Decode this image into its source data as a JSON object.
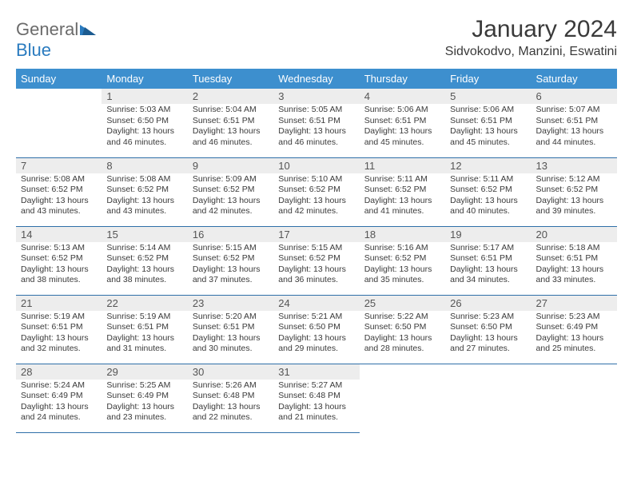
{
  "logo": {
    "general": "General",
    "blue": "Blue"
  },
  "title": {
    "month": "January 2024",
    "location": "Sidvokodvo, Manzini, Eswatini"
  },
  "headers": [
    "Sunday",
    "Monday",
    "Tuesday",
    "Wednesday",
    "Thursday",
    "Friday",
    "Saturday"
  ],
  "colors": {
    "header_bg": "#3d8fce",
    "row_border": "#2f6fa8",
    "daynum_bg": "#ededed",
    "logo_blue": "#2a7bbf",
    "text": "#3a3a3a"
  },
  "weeks": [
    [
      {
        "empty": true
      },
      {
        "num": "1",
        "sunrise": "Sunrise: 5:03 AM",
        "sunset": "Sunset: 6:50 PM",
        "daylight": "Daylight: 13 hours and 46 minutes."
      },
      {
        "num": "2",
        "sunrise": "Sunrise: 5:04 AM",
        "sunset": "Sunset: 6:51 PM",
        "daylight": "Daylight: 13 hours and 46 minutes."
      },
      {
        "num": "3",
        "sunrise": "Sunrise: 5:05 AM",
        "sunset": "Sunset: 6:51 PM",
        "daylight": "Daylight: 13 hours and 46 minutes."
      },
      {
        "num": "4",
        "sunrise": "Sunrise: 5:06 AM",
        "sunset": "Sunset: 6:51 PM",
        "daylight": "Daylight: 13 hours and 45 minutes."
      },
      {
        "num": "5",
        "sunrise": "Sunrise: 5:06 AM",
        "sunset": "Sunset: 6:51 PM",
        "daylight": "Daylight: 13 hours and 45 minutes."
      },
      {
        "num": "6",
        "sunrise": "Sunrise: 5:07 AM",
        "sunset": "Sunset: 6:51 PM",
        "daylight": "Daylight: 13 hours and 44 minutes."
      }
    ],
    [
      {
        "num": "7",
        "sunrise": "Sunrise: 5:08 AM",
        "sunset": "Sunset: 6:52 PM",
        "daylight": "Daylight: 13 hours and 43 minutes."
      },
      {
        "num": "8",
        "sunrise": "Sunrise: 5:08 AM",
        "sunset": "Sunset: 6:52 PM",
        "daylight": "Daylight: 13 hours and 43 minutes."
      },
      {
        "num": "9",
        "sunrise": "Sunrise: 5:09 AM",
        "sunset": "Sunset: 6:52 PM",
        "daylight": "Daylight: 13 hours and 42 minutes."
      },
      {
        "num": "10",
        "sunrise": "Sunrise: 5:10 AM",
        "sunset": "Sunset: 6:52 PM",
        "daylight": "Daylight: 13 hours and 42 minutes."
      },
      {
        "num": "11",
        "sunrise": "Sunrise: 5:11 AM",
        "sunset": "Sunset: 6:52 PM",
        "daylight": "Daylight: 13 hours and 41 minutes."
      },
      {
        "num": "12",
        "sunrise": "Sunrise: 5:11 AM",
        "sunset": "Sunset: 6:52 PM",
        "daylight": "Daylight: 13 hours and 40 minutes."
      },
      {
        "num": "13",
        "sunrise": "Sunrise: 5:12 AM",
        "sunset": "Sunset: 6:52 PM",
        "daylight": "Daylight: 13 hours and 39 minutes."
      }
    ],
    [
      {
        "num": "14",
        "sunrise": "Sunrise: 5:13 AM",
        "sunset": "Sunset: 6:52 PM",
        "daylight": "Daylight: 13 hours and 38 minutes."
      },
      {
        "num": "15",
        "sunrise": "Sunrise: 5:14 AM",
        "sunset": "Sunset: 6:52 PM",
        "daylight": "Daylight: 13 hours and 38 minutes."
      },
      {
        "num": "16",
        "sunrise": "Sunrise: 5:15 AM",
        "sunset": "Sunset: 6:52 PM",
        "daylight": "Daylight: 13 hours and 37 minutes."
      },
      {
        "num": "17",
        "sunrise": "Sunrise: 5:15 AM",
        "sunset": "Sunset: 6:52 PM",
        "daylight": "Daylight: 13 hours and 36 minutes."
      },
      {
        "num": "18",
        "sunrise": "Sunrise: 5:16 AM",
        "sunset": "Sunset: 6:52 PM",
        "daylight": "Daylight: 13 hours and 35 minutes."
      },
      {
        "num": "19",
        "sunrise": "Sunrise: 5:17 AM",
        "sunset": "Sunset: 6:51 PM",
        "daylight": "Daylight: 13 hours and 34 minutes."
      },
      {
        "num": "20",
        "sunrise": "Sunrise: 5:18 AM",
        "sunset": "Sunset: 6:51 PM",
        "daylight": "Daylight: 13 hours and 33 minutes."
      }
    ],
    [
      {
        "num": "21",
        "sunrise": "Sunrise: 5:19 AM",
        "sunset": "Sunset: 6:51 PM",
        "daylight": "Daylight: 13 hours and 32 minutes."
      },
      {
        "num": "22",
        "sunrise": "Sunrise: 5:19 AM",
        "sunset": "Sunset: 6:51 PM",
        "daylight": "Daylight: 13 hours and 31 minutes."
      },
      {
        "num": "23",
        "sunrise": "Sunrise: 5:20 AM",
        "sunset": "Sunset: 6:51 PM",
        "daylight": "Daylight: 13 hours and 30 minutes."
      },
      {
        "num": "24",
        "sunrise": "Sunrise: 5:21 AM",
        "sunset": "Sunset: 6:50 PM",
        "daylight": "Daylight: 13 hours and 29 minutes."
      },
      {
        "num": "25",
        "sunrise": "Sunrise: 5:22 AM",
        "sunset": "Sunset: 6:50 PM",
        "daylight": "Daylight: 13 hours and 28 minutes."
      },
      {
        "num": "26",
        "sunrise": "Sunrise: 5:23 AM",
        "sunset": "Sunset: 6:50 PM",
        "daylight": "Daylight: 13 hours and 27 minutes."
      },
      {
        "num": "27",
        "sunrise": "Sunrise: 5:23 AM",
        "sunset": "Sunset: 6:49 PM",
        "daylight": "Daylight: 13 hours and 25 minutes."
      }
    ],
    [
      {
        "num": "28",
        "sunrise": "Sunrise: 5:24 AM",
        "sunset": "Sunset: 6:49 PM",
        "daylight": "Daylight: 13 hours and 24 minutes."
      },
      {
        "num": "29",
        "sunrise": "Sunrise: 5:25 AM",
        "sunset": "Sunset: 6:49 PM",
        "daylight": "Daylight: 13 hours and 23 minutes."
      },
      {
        "num": "30",
        "sunrise": "Sunrise: 5:26 AM",
        "sunset": "Sunset: 6:48 PM",
        "daylight": "Daylight: 13 hours and 22 minutes."
      },
      {
        "num": "31",
        "sunrise": "Sunrise: 5:27 AM",
        "sunset": "Sunset: 6:48 PM",
        "daylight": "Daylight: 13 hours and 21 minutes."
      },
      {
        "empty": true
      },
      {
        "empty": true
      },
      {
        "empty": true
      }
    ]
  ]
}
